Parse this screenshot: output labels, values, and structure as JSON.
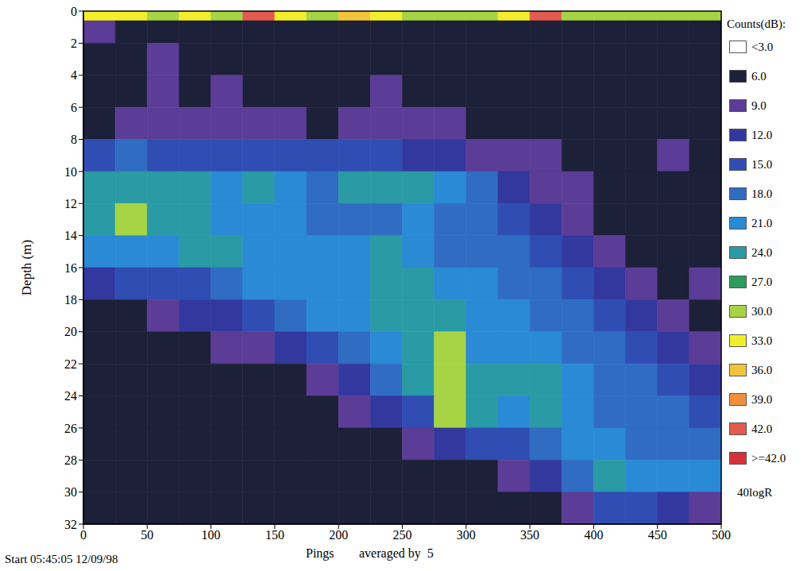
{
  "chart_data": {
    "type": "heatmap",
    "y_label": "Depth (m)",
    "x_label": "Pings",
    "x_label_note": "averaged by  5",
    "footer": "Start 05:45:05 12/09/98",
    "xlim": [
      0,
      500
    ],
    "xticks": [
      0,
      50,
      100,
      150,
      200,
      250,
      300,
      350,
      400,
      450,
      500
    ],
    "ylim": [
      0,
      32
    ],
    "yticks": [
      0,
      2,
      4,
      6,
      8,
      10,
      12,
      14,
      16,
      18,
      20,
      22,
      24,
      26,
      28,
      30,
      32
    ],
    "grid": false,
    "x_edges": [
      0,
      25,
      50,
      75,
      100,
      125,
      150,
      175,
      200,
      225,
      250,
      275,
      300,
      325,
      350,
      375,
      400,
      425,
      450,
      475,
      500
    ],
    "y_edges": [
      0,
      0.6,
      2,
      4,
      6,
      8,
      10,
      12,
      14,
      16,
      18,
      20,
      22,
      24,
      26,
      28,
      30,
      32
    ],
    "cells": [
      [
        33,
        33,
        30,
        33,
        30,
        42,
        33,
        30,
        36,
        33,
        30,
        30,
        30,
        33,
        42,
        30,
        30,
        30,
        30,
        30
      ],
      [
        9,
        6,
        6,
        6,
        6,
        6,
        6,
        6,
        6,
        6,
        6,
        6,
        6,
        6,
        6,
        6,
        6,
        6,
        6,
        6
      ],
      [
        6,
        6,
        9,
        6,
        6,
        6,
        6,
        6,
        6,
        6,
        6,
        6,
        6,
        6,
        6,
        6,
        6,
        6,
        6,
        6
      ],
      [
        6,
        6,
        9,
        6,
        9,
        6,
        6,
        6,
        6,
        9,
        6,
        6,
        6,
        6,
        6,
        6,
        6,
        6,
        6,
        6
      ],
      [
        6,
        9,
        9,
        9,
        9,
        9,
        9,
        6,
        9,
        9,
        9,
        9,
        6,
        6,
        6,
        6,
        6,
        6,
        6,
        6
      ],
      [
        15,
        18,
        15,
        15,
        15,
        15,
        15,
        15,
        15,
        15,
        12,
        12,
        9,
        9,
        9,
        6,
        6,
        6,
        9,
        6
      ],
      [
        24,
        24,
        24,
        24,
        21,
        24,
        21,
        18,
        24,
        24,
        24,
        21,
        18,
        12,
        9,
        9,
        6,
        6,
        6,
        6
      ],
      [
        24,
        30,
        24,
        24,
        21,
        21,
        21,
        18,
        18,
        18,
        21,
        18,
        18,
        15,
        12,
        9,
        6,
        6,
        6,
        6
      ],
      [
        21,
        21,
        21,
        24,
        24,
        21,
        21,
        21,
        21,
        24,
        21,
        18,
        18,
        18,
        15,
        12,
        9,
        6,
        6,
        6
      ],
      [
        12,
        15,
        15,
        15,
        18,
        21,
        21,
        21,
        21,
        24,
        24,
        21,
        21,
        18,
        18,
        15,
        12,
        9,
        6,
        9
      ],
      [
        6,
        6,
        9,
        12,
        12,
        15,
        18,
        21,
        21,
        24,
        24,
        24,
        21,
        21,
        18,
        18,
        15,
        12,
        9,
        6
      ],
      [
        6,
        6,
        6,
        6,
        9,
        9,
        12,
        15,
        18,
        21,
        24,
        30,
        21,
        21,
        21,
        18,
        18,
        15,
        12,
        9
      ],
      [
        6,
        6,
        6,
        6,
        6,
        6,
        6,
        9,
        12,
        18,
        24,
        30,
        24,
        24,
        24,
        21,
        18,
        18,
        15,
        12
      ],
      [
        6,
        6,
        6,
        6,
        6,
        6,
        6,
        6,
        9,
        12,
        15,
        30,
        24,
        21,
        24,
        21,
        18,
        18,
        18,
        15
      ],
      [
        6,
        6,
        6,
        6,
        6,
        6,
        6,
        6,
        6,
        6,
        9,
        12,
        15,
        15,
        18,
        21,
        21,
        18,
        18,
        18
      ],
      [
        6,
        6,
        6,
        6,
        6,
        6,
        6,
        6,
        6,
        6,
        6,
        6,
        6,
        9,
        12,
        18,
        24,
        21,
        21,
        21
      ],
      [
        6,
        6,
        6,
        6,
        6,
        6,
        6,
        6,
        6,
        6,
        6,
        6,
        6,
        6,
        6,
        9,
        15,
        15,
        12,
        9
      ]
    ],
    "colorbar": {
      "title": "Counts(dB):",
      "ticks": [
        {
          "value": 3,
          "label": "<3.0"
        },
        {
          "value": 6,
          "label": "6.0"
        },
        {
          "value": 9,
          "label": "9.0"
        },
        {
          "value": 12,
          "label": "12.0"
        },
        {
          "value": 15,
          "label": "15.0"
        },
        {
          "value": 18,
          "label": "18.0"
        },
        {
          "value": 21,
          "label": "21.0"
        },
        {
          "value": 24,
          "label": "24.0"
        },
        {
          "value": 27,
          "label": "27.0"
        },
        {
          "value": 30,
          "label": "30.0"
        },
        {
          "value": 33,
          "label": "33.0"
        },
        {
          "value": 36,
          "label": "36.0"
        },
        {
          "value": 39,
          "label": "39.0"
        },
        {
          "value": 42,
          "label": "42.0"
        },
        {
          "value": 42,
          "label": ">=42.0"
        }
      ],
      "colors": [
        "#ffffff",
        "#1c2038",
        "#5b3c96",
        "#33389e",
        "#2f4db3",
        "#2f6cc2",
        "#2a8ad6",
        "#2a9aa4",
        "#2e9a5e",
        "#a6d444",
        "#f2ef2a",
        "#f2c43a",
        "#f0903e",
        "#e25a4e",
        "#d8303a"
      ],
      "note": "40logR"
    }
  }
}
